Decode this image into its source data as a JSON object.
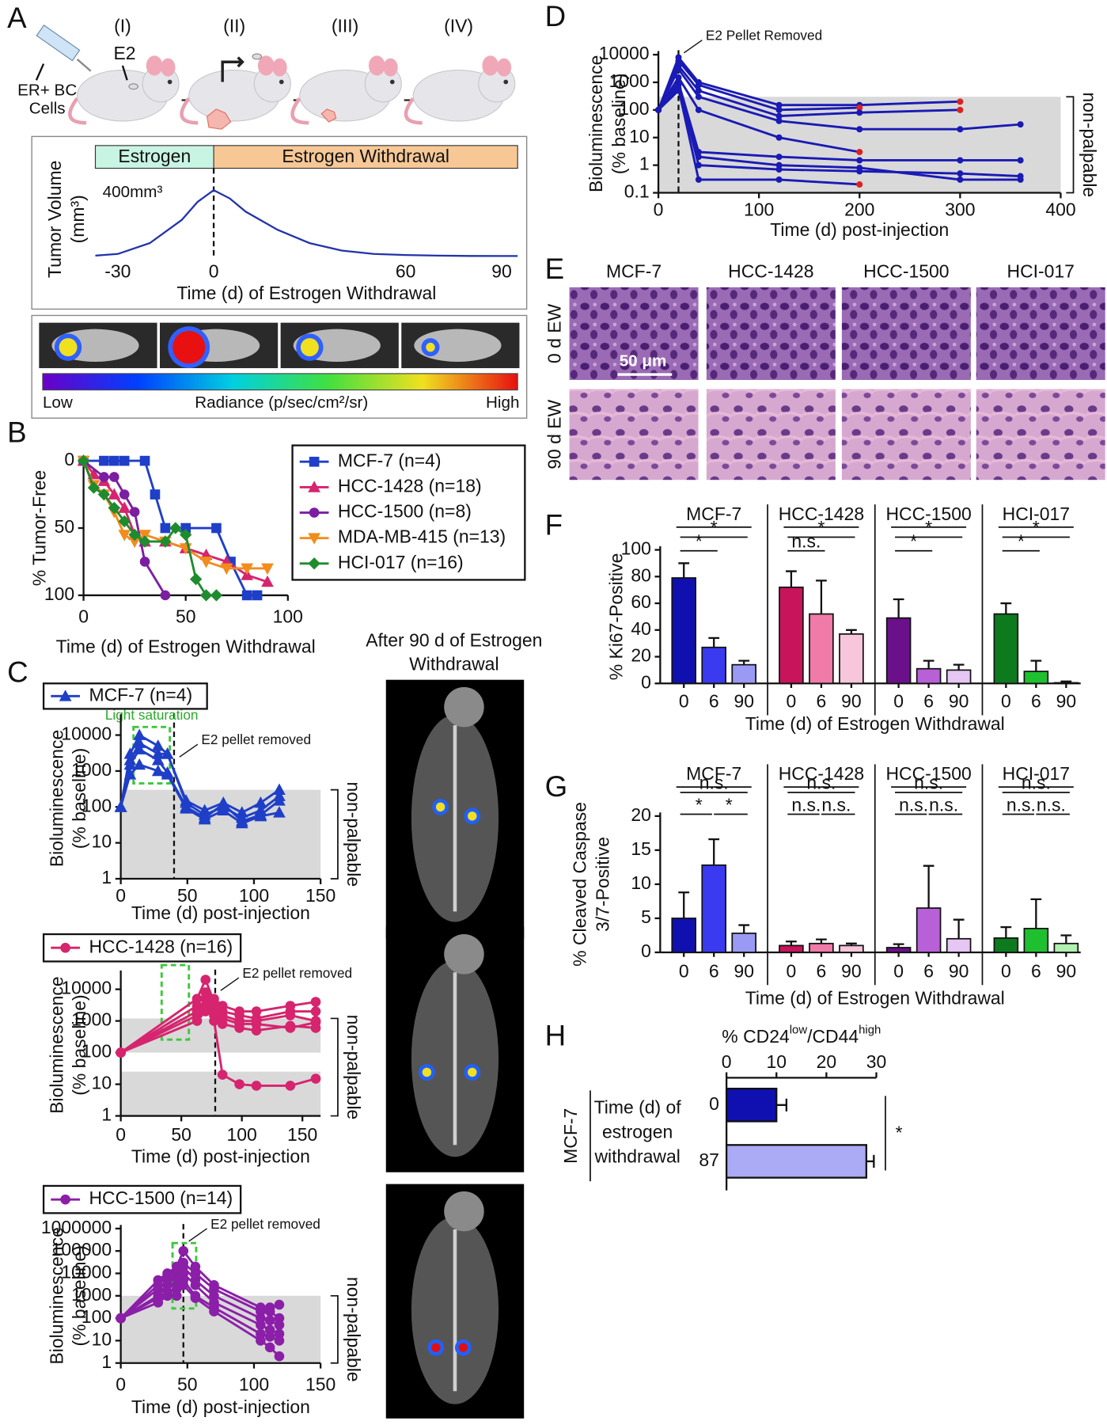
{
  "diagram": {
    "panel_labels": [
      "A",
      "B",
      "C",
      "D",
      "E",
      "F",
      "G",
      "H"
    ],
    "stages": [
      "(I)",
      "(II)",
      "(III)",
      "(IV)"
    ],
    "cells_label": [
      "ER+ BC",
      "Cells"
    ],
    "e2_label": "E2",
    "imaging": {
      "low": "Low",
      "title": "Radiance (p/sec/cm²/sr)",
      "high": "High"
    },
    "ct_title": [
      "After 90 d of Estrogen",
      "Withdrawal"
    ],
    "histology": {
      "columns": [
        "MCF-7",
        "HCC-1428",
        "HCC-1500",
        "HCI-017"
      ],
      "rows": [
        "0 d EW",
        "90 d EW"
      ],
      "scale_bar": "50 μm"
    }
  },
  "chart_data": [
    {
      "type": "line",
      "phases": [
        "Estrogen",
        "Estrogen Withdrawal"
      ],
      "peak_label": "400mm³",
      "ylabel": [
        "Tumor Volume",
        "(mm³)"
      ],
      "xlabel": "Time (d) of Estrogen Withdrawal",
      "x": [
        -37,
        -30,
        -20,
        -10,
        -5,
        0,
        5,
        10,
        20,
        30,
        40,
        50,
        60,
        70,
        80,
        95
      ],
      "series": [
        {
          "color": "#2233aa",
          "values": [
            5,
            15,
            80,
            220,
            330,
            400,
            350,
            270,
            160,
            80,
            35,
            15,
            8,
            5,
            3,
            2
          ]
        }
      ],
      "xlim": [
        -37,
        95
      ],
      "ylim": [
        0,
        450
      ],
      "xticks": [
        -30,
        0,
        60,
        90
      ],
      "vline": 0
    },
    {
      "type": "line",
      "ylabel": "% Tumor-Free",
      "xlabel": "Time (d) of Estrogen Withdrawal",
      "xlim": [
        0,
        100
      ],
      "ylim": [
        0,
        100
      ],
      "y_inverted": true,
      "xticks": [
        0,
        50,
        100
      ],
      "yticks": [
        0,
        50,
        100
      ],
      "series": [
        {
          "name": "MCF-7 (n=4)",
          "color": "#1f3fc8",
          "marker": "square",
          "x": [
            0,
            10,
            15,
            20,
            30,
            35,
            40,
            50,
            65,
            72,
            80,
            85
          ],
          "values": [
            0,
            0,
            0,
            0,
            0,
            25,
            50,
            50,
            50,
            75,
            100,
            100
          ]
        },
        {
          "name": "HCC-1428 (n=18)",
          "color": "#d6246e",
          "marker": "triangle",
          "x": [
            0,
            5,
            10,
            15,
            20,
            25,
            30,
            40,
            50,
            60,
            70,
            80,
            90
          ],
          "values": [
            0,
            10,
            15,
            25,
            35,
            55,
            60,
            60,
            65,
            70,
            75,
            85,
            90
          ]
        },
        {
          "name": "HCC-1500 (n=8)",
          "color": "#7a1fa2",
          "marker": "circle",
          "x": [
            0,
            10,
            15,
            20,
            25,
            30,
            40
          ],
          "values": [
            0,
            12,
            12,
            25,
            38,
            75,
            100
          ]
        },
        {
          "name": "MDA-MB-415 (n=13)",
          "color": "#f28c1c",
          "marker": "triangle-down",
          "x": [
            0,
            5,
            10,
            15,
            20,
            25,
            30,
            40,
            50,
            60,
            70,
            80,
            90
          ],
          "values": [
            0,
            18,
            25,
            38,
            55,
            60,
            55,
            60,
            65,
            75,
            80,
            80,
            80
          ]
        },
        {
          "name": "HCI-017 (n=16)",
          "color": "#1e8c2e",
          "marker": "diamond",
          "x": [
            0,
            5,
            10,
            15,
            20,
            25,
            30,
            40,
            45,
            50,
            55,
            60,
            65
          ],
          "values": [
            0,
            20,
            25,
            35,
            45,
            55,
            60,
            60,
            50,
            55,
            88,
            100,
            100
          ]
        }
      ]
    },
    {
      "type": "line",
      "legend_label": "MCF-7 (n=4)",
      "marker": "triangle",
      "color": "#1f3fc8",
      "log_y": true,
      "ylabel": [
        "Bioluminescence",
        "(% baseline)"
      ],
      "xlabel": "Time (d) post-injection",
      "xlim": [
        0,
        150
      ],
      "ylim": [
        1,
        30000
      ],
      "xticks": [
        0,
        50,
        100,
        150
      ],
      "yticks": [
        1,
        10,
        100,
        1000,
        10000
      ],
      "shade_ranges": [
        [
          1,
          300
        ]
      ],
      "shade_label": "non-palpable",
      "vline": 40,
      "vline_label": "E2 pellet removed",
      "box_label": "Light saturation",
      "x": [
        0,
        7,
        14,
        28,
        35,
        49,
        63,
        77,
        91,
        105,
        119
      ],
      "series": [
        {
          "values": [
            100,
            3000,
            10000,
            5000,
            3000,
            150,
            80,
            130,
            70,
            130,
            300
          ]
        },
        {
          "values": [
            100,
            2000,
            6000,
            3000,
            3000,
            130,
            60,
            100,
            50,
            80,
            200
          ]
        },
        {
          "values": [
            100,
            1500,
            4000,
            2000,
            900,
            100,
            50,
            120,
            40,
            60,
            150
          ]
        },
        {
          "values": [
            100,
            800,
            1500,
            1000,
            800,
            90,
            45,
            80,
            35,
            55,
            70
          ]
        }
      ]
    },
    {
      "type": "line",
      "legend_label": "HCC-1428 (n=16)",
      "marker": "circle",
      "color": "#d6246e",
      "log_y": true,
      "ylabel": [
        "Bioluminescence",
        "(% baseline)"
      ],
      "xlabel": "Time (d) post-injection",
      "xlim": [
        0,
        165
      ],
      "ylim": [
        1,
        30000
      ],
      "xticks": [
        0,
        50,
        100,
        150
      ],
      "yticks": [
        1,
        10,
        100,
        1000,
        10000
      ],
      "shade_ranges": [
        [
          100,
          1200
        ],
        [
          1,
          25
        ]
      ],
      "shade_label": "non-palpable",
      "vline": 78,
      "vline_label": "E2 pellet removed",
      "x": [
        0,
        63,
        70,
        77,
        84,
        98,
        112,
        140,
        161
      ],
      "series": [
        {
          "values": [
            100,
            3000,
            8000,
            5000,
            3000,
            2000,
            2000,
            3000,
            4000
          ]
        },
        {
          "values": [
            100,
            2000,
            5000,
            3000,
            2000,
            1500,
            1200,
            2000,
            2000
          ]
        },
        {
          "values": [
            100,
            1500,
            3000,
            2500,
            1500,
            1000,
            1000,
            1500,
            1000
          ]
        },
        {
          "values": [
            100,
            5000,
            20000,
            4000,
            1200,
            800,
            800,
            600,
            900
          ]
        },
        {
          "values": [
            100,
            1000,
            2000,
            1500,
            800,
            600,
            500,
            700,
            600
          ]
        },
        {
          "values": [
            100,
            2000,
            3000,
            1000,
            20,
            10,
            9,
            9,
            15
          ]
        }
      ]
    },
    {
      "type": "line",
      "legend_label": "HCC-1500 (n=14)",
      "marker": "circle",
      "color": "#8b1fa8",
      "log_y": true,
      "ylabel": [
        "Bioluminescence",
        "(% baseline)"
      ],
      "xlabel": "Time (d) post-injection",
      "xlim": [
        0,
        150
      ],
      "ylim": [
        1,
        1000000
      ],
      "xticks": [
        0,
        50,
        100,
        150
      ],
      "yticks": [
        1,
        10,
        100,
        1000,
        10000,
        100000,
        1000000
      ],
      "shade_ranges": [
        [
          1,
          1000
        ]
      ],
      "shade_label": "non-palpable",
      "vline": 47,
      "vline_label": "E2 pellet removed",
      "x": [
        0,
        28,
        35,
        42,
        47,
        56,
        70,
        105,
        112,
        119
      ],
      "series": [
        {
          "values": [
            100,
            5000,
            10000,
            20000,
            100000,
            20000,
            3000,
            300,
            300,
            400
          ]
        },
        {
          "values": [
            100,
            3000,
            8000,
            10000,
            30000,
            10000,
            2000,
            200,
            200,
            100
          ]
        },
        {
          "values": [
            100,
            2000,
            5000,
            6000,
            20000,
            5000,
            1000,
            100,
            80,
            50
          ]
        },
        {
          "values": [
            100,
            1000,
            3000,
            3000,
            10000,
            3000,
            500,
            50,
            30,
            20
          ]
        },
        {
          "values": [
            100,
            800,
            1500,
            2000,
            5000,
            1000,
            300,
            20,
            15,
            10
          ]
        },
        {
          "values": [
            100,
            500,
            1000,
            1000,
            3000,
            800,
            200,
            10,
            5,
            2
          ]
        }
      ]
    },
    {
      "type": "line",
      "color": "#1a1ab4",
      "marker": "circle",
      "log_y": true,
      "ylabel": [
        "Bioluminescence",
        "(% baseline)"
      ],
      "xlabel": "Time (d) post-injection",
      "xlim": [
        0,
        400
      ],
      "ylim": [
        0.1,
        10000
      ],
      "xticks": [
        0,
        100,
        200,
        300,
        400
      ],
      "yticks": [
        0.1,
        1,
        10,
        100,
        1000,
        10000
      ],
      "shade_ranges": [
        [
          0.1,
          300
        ]
      ],
      "shade_label": "non-palpable",
      "vline": 20,
      "vline_label": "E2 Pellet  Removed",
      "x": [
        0,
        20,
        40,
        120,
        200,
        300,
        360
      ],
      "series": [
        {
          "end_color": "#e02020",
          "values": [
            100,
            8000,
            1000,
            150,
            150,
            200,
            null
          ]
        },
        {
          "end_color": "#e02020",
          "values": [
            100,
            6000,
            800,
            100,
            120,
            null,
            null
          ]
        },
        {
          "end_color": "#e02020",
          "values": [
            100,
            4000,
            500,
            60,
            80,
            100,
            null
          ]
        },
        {
          "values": [
            100,
            3000,
            300,
            40,
            20,
            20,
            30
          ]
        },
        {
          "end_color": "#e02020",
          "values": [
            100,
            1500,
            100,
            10,
            3,
            null,
            null
          ]
        },
        {
          "values": [
            100,
            1000,
            3,
            2,
            1.5,
            1.5,
            1.5
          ]
        },
        {
          "values": [
            100,
            800,
            1,
            0.7,
            0.6,
            0.5,
            0.4
          ]
        },
        {
          "end_color": "#e02020",
          "values": [
            100,
            600,
            0.3,
            0.3,
            0.2,
            null,
            null
          ]
        },
        {
          "values": [
            100,
            500,
            2,
            1,
            0.8,
            0.3,
            0.3
          ]
        }
      ]
    },
    {
      "type": "bar",
      "ylabel": "% Ki67-Positive",
      "xlabel": "Time (d) of Estrogen Withdrawal",
      "ylim": [
        0,
        100
      ],
      "yticks": [
        0,
        20,
        40,
        60,
        80,
        100
      ],
      "groups": [
        {
          "name": "MCF-7",
          "categories": [
            "0",
            "6",
            "90"
          ],
          "values": [
            79,
            27,
            14
          ],
          "errors": [
            11,
            7,
            3
          ],
          "colors": [
            "#1010b0",
            "#3a3af0",
            "#9a9af5"
          ],
          "annotations": [
            "*",
            "*"
          ]
        },
        {
          "name": "HCC-1428",
          "categories": [
            "0",
            "6",
            "90"
          ],
          "values": [
            72,
            52,
            37
          ],
          "errors": [
            12,
            25,
            3
          ],
          "colors": [
            "#c8145a",
            "#f07aa8",
            "#f8c6da"
          ],
          "annotations": [
            "n.s.",
            "*"
          ]
        },
        {
          "name": "HCC-1500",
          "categories": [
            "0",
            "6",
            "90"
          ],
          "values": [
            49,
            11,
            10
          ],
          "errors": [
            14,
            6,
            4
          ],
          "colors": [
            "#6a108a",
            "#b860d8",
            "#e6c6f2"
          ],
          "annotations": [
            "*",
            "*"
          ]
        },
        {
          "name": "HCI-017",
          "categories": [
            "0",
            "6",
            "90"
          ],
          "values": [
            52,
            9,
            0.5
          ],
          "errors": [
            8,
            8,
            1
          ],
          "colors": [
            "#0d7a1e",
            "#1fc030",
            "#b0f0b0"
          ],
          "annotations": [
            "*",
            "*"
          ]
        }
      ]
    },
    {
      "type": "bar",
      "ylabel": [
        "% Cleaved Caspase",
        "3/7-Positive"
      ],
      "xlabel": "Time (d) of Estrogen Withdrawal",
      "ylim": [
        0,
        20
      ],
      "yticks": [
        0,
        5,
        10,
        15,
        20
      ],
      "groups": [
        {
          "name": "MCF-7",
          "categories": [
            "0",
            "6",
            "90"
          ],
          "values": [
            5,
            12.8,
            2.8
          ],
          "errors": [
            3.8,
            3.8,
            1.2
          ],
          "colors": [
            "#1010b0",
            "#3a3af0",
            "#9a9af5"
          ],
          "annotations": [
            "n.s.",
            "*",
            "*"
          ]
        },
        {
          "name": "HCC-1428",
          "categories": [
            "0",
            "6",
            "90"
          ],
          "values": [
            1,
            1.3,
            1
          ],
          "errors": [
            0.6,
            0.6,
            0.3
          ],
          "colors": [
            "#c8145a",
            "#f07aa8",
            "#f8c6da"
          ],
          "annotations": [
            "n.s.",
            "n.s.",
            "n.s."
          ]
        },
        {
          "name": "HCC-1500",
          "categories": [
            "0",
            "6",
            "90"
          ],
          "values": [
            0.7,
            6.5,
            2
          ],
          "errors": [
            0.5,
            6.2,
            2.8
          ],
          "colors": [
            "#6a108a",
            "#b860d8",
            "#e6c6f2"
          ],
          "annotations": [
            "n.s.",
            "n.s.",
            "n.s."
          ]
        },
        {
          "name": "HCI-017",
          "categories": [
            "0",
            "6",
            "90"
          ],
          "values": [
            2.1,
            3.5,
            1.3
          ],
          "errors": [
            1.6,
            4.3,
            1.2
          ],
          "colors": [
            "#0d7a1e",
            "#1fc030",
            "#b0f0b0"
          ],
          "annotations": [
            "n.s.",
            "n.s.",
            "n.s."
          ]
        }
      ]
    },
    {
      "type": "barh",
      "xlabel_parts": [
        "% CD24",
        "low",
        "/CD44",
        "high"
      ],
      "xlim": [
        0,
        30
      ],
      "xticks": [
        0,
        10,
        20,
        30
      ],
      "group_label": "MCF-7",
      "ylabel": [
        "Time (d) of",
        "estrogen",
        "withdrawal"
      ],
      "categories": [
        "0",
        "87"
      ],
      "values": [
        10,
        28
      ],
      "errors": [
        2,
        1.5
      ],
      "colors": [
        "#1010b0",
        "#aaaaf5"
      ],
      "significance": "*"
    }
  ]
}
